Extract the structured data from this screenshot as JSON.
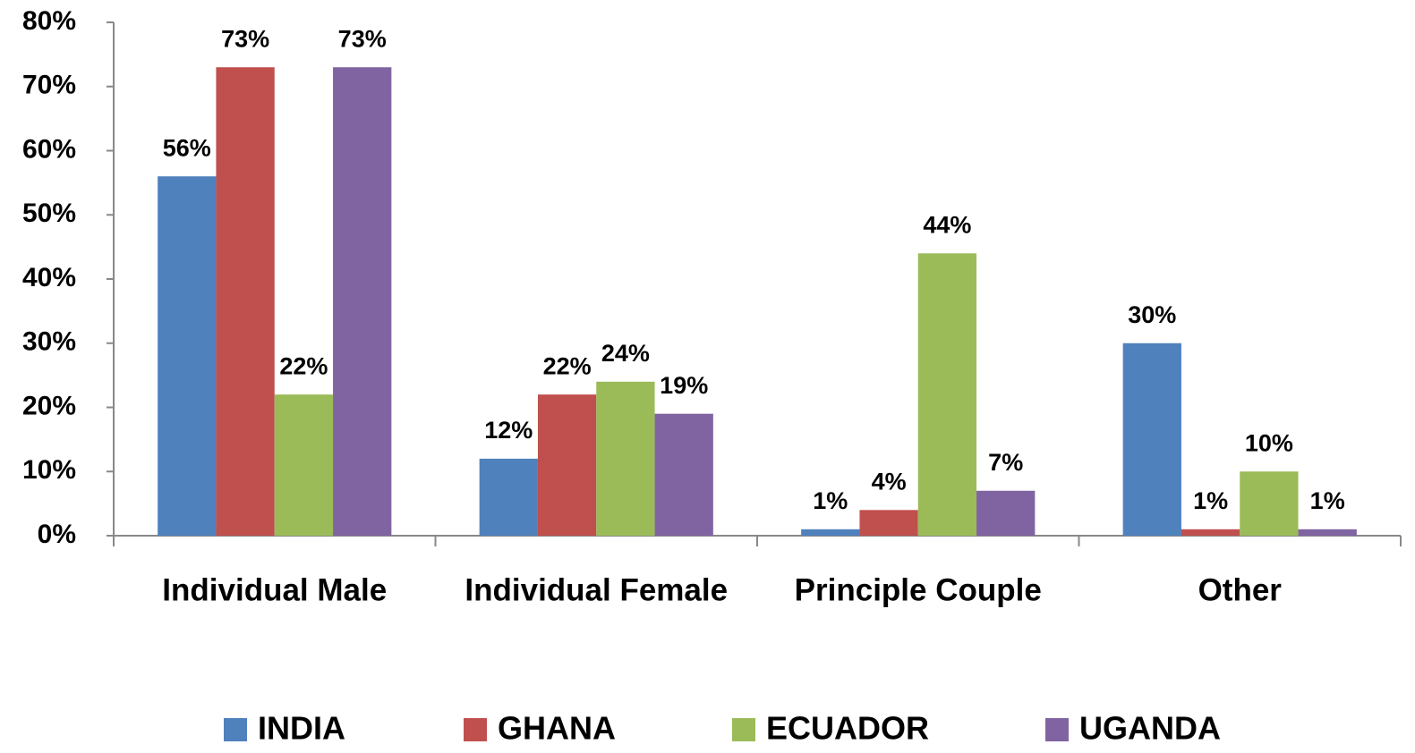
{
  "chart_data": {
    "type": "bar",
    "categories": [
      "Individual Male",
      "Individual Female",
      "Principle Couple",
      "Other"
    ],
    "series": [
      {
        "name": "INDIA",
        "color": "#4f81bd",
        "values": [
          56,
          12,
          1,
          30
        ],
        "value_labels": [
          "56%",
          "12%",
          "1%",
          "30%"
        ]
      },
      {
        "name": "GHANA",
        "color": "#c0504d",
        "values": [
          73,
          22,
          4,
          1
        ],
        "value_labels": [
          "73%",
          "22%",
          "4%",
          "1%"
        ]
      },
      {
        "name": "ECUADOR",
        "color": "#9bbb59",
        "values": [
          22,
          24,
          44,
          10
        ],
        "value_labels": [
          "22%",
          "24%",
          "44%",
          "10%"
        ]
      },
      {
        "name": "UGANDA",
        "color": "#8064a2",
        "values": [
          73,
          19,
          7,
          1
        ],
        "value_labels": [
          "73%",
          "19%",
          "7%",
          "1%"
        ]
      }
    ],
    "ylim": [
      0,
      80
    ],
    "yticks": [
      {
        "value": 0,
        "label": "0%"
      },
      {
        "value": 10,
        "label": "10%"
      },
      {
        "value": 20,
        "label": "20%"
      },
      {
        "value": 30,
        "label": "30%"
      },
      {
        "value": 40,
        "label": "40%"
      },
      {
        "value": 50,
        "label": "50%"
      },
      {
        "value": 60,
        "label": "60%"
      },
      {
        "value": 70,
        "label": "70%"
      },
      {
        "value": 80,
        "label": "80%"
      }
    ],
    "legend": "bottom"
  }
}
